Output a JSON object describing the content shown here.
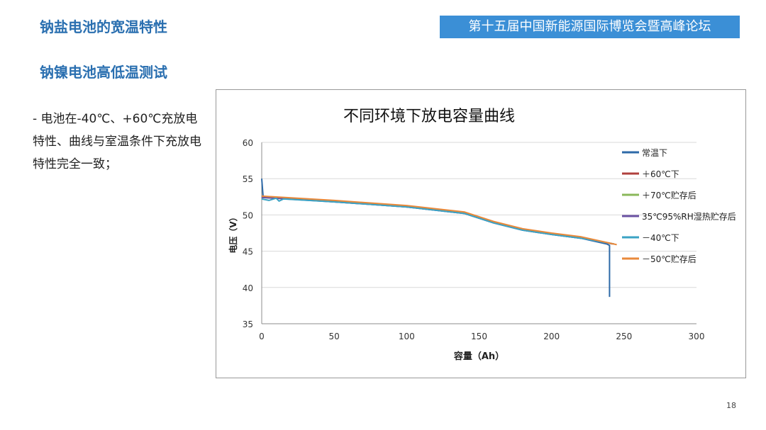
{
  "header": {
    "section_title": "钠盐电池的宽温特性",
    "sub_title": "钠镍电池高低温测试",
    "banner": "第十五届中国新能源国际博览会暨高峰论坛"
  },
  "body_text": "- 电池在-40℃、+60℃充放电特性、曲线与室温条件下充放电特性完全一致；",
  "page_number": "18",
  "colors": {
    "heading": "#2a6fb0",
    "banner": "#3b8fd6"
  },
  "chart_data": {
    "type": "line",
    "title": "不同环境下放电容量曲线",
    "xlabel": "容量（Ah）",
    "ylabel": "电压（V）",
    "xlim": [
      0,
      300
    ],
    "ylim": [
      35,
      60
    ],
    "x_ticks": [
      0,
      50,
      100,
      150,
      200,
      250,
      300
    ],
    "y_ticks": [
      35,
      40,
      45,
      50,
      55,
      60
    ],
    "grid": "horizontal",
    "legend_position": "right",
    "series": [
      {
        "name": "常温下",
        "color": "#2e6aa8",
        "points": [
          [
            0,
            55
          ],
          [
            1,
            52.5
          ],
          [
            50,
            51.8
          ],
          [
            100,
            51.1
          ],
          [
            140,
            50.2
          ],
          [
            160,
            48.9
          ],
          [
            180,
            47.9
          ],
          [
            200,
            47.3
          ],
          [
            220,
            46.8
          ],
          [
            238,
            46.0
          ],
          [
            240,
            45.8
          ],
          [
            240,
            38.7
          ]
        ]
      },
      {
        "name": "＋60℃下",
        "color": "#b0413e",
        "points": [
          [
            0,
            52.5
          ],
          [
            50,
            51.9
          ],
          [
            100,
            51.2
          ],
          [
            140,
            50.3
          ],
          [
            160,
            49.0
          ],
          [
            180,
            48.0
          ],
          [
            200,
            47.4
          ],
          [
            220,
            46.9
          ],
          [
            242,
            46.0
          ]
        ]
      },
      {
        "name": "＋70℃贮存后",
        "color": "#8ab85a",
        "points": [
          [
            0,
            52.4
          ],
          [
            50,
            51.9
          ],
          [
            100,
            51.2
          ],
          [
            140,
            50.3
          ],
          [
            160,
            49.0
          ],
          [
            180,
            48.0
          ],
          [
            200,
            47.4
          ],
          [
            220,
            46.9
          ],
          [
            243,
            46.0
          ]
        ]
      },
      {
        "name": "35℃95%RH湿热贮存后",
        "color": "#6b52a3",
        "points": [
          [
            0,
            52.4
          ],
          [
            50,
            51.8
          ],
          [
            100,
            51.1
          ],
          [
            140,
            50.2
          ],
          [
            160,
            48.9
          ],
          [
            180,
            47.9
          ],
          [
            200,
            47.3
          ],
          [
            220,
            46.8
          ],
          [
            243,
            46.0
          ]
        ]
      },
      {
        "name": "－40℃下",
        "color": "#3ba3c4",
        "points": [
          [
            0,
            52.2
          ],
          [
            5,
            52.0
          ],
          [
            10,
            52.3
          ],
          [
            12,
            51.9
          ],
          [
            15,
            52.2
          ],
          [
            50,
            51.8
          ],
          [
            100,
            51.1
          ],
          [
            140,
            50.2
          ],
          [
            160,
            48.9
          ],
          [
            180,
            47.9
          ],
          [
            200,
            47.3
          ],
          [
            220,
            46.8
          ],
          [
            243,
            46.0
          ]
        ]
      },
      {
        "name": "－50℃贮存后",
        "color": "#e9893b",
        "points": [
          [
            0,
            52.6
          ],
          [
            50,
            52.0
          ],
          [
            100,
            51.3
          ],
          [
            140,
            50.4
          ],
          [
            160,
            49.1
          ],
          [
            180,
            48.1
          ],
          [
            200,
            47.5
          ],
          [
            220,
            47.0
          ],
          [
            245,
            45.9
          ]
        ]
      }
    ]
  }
}
